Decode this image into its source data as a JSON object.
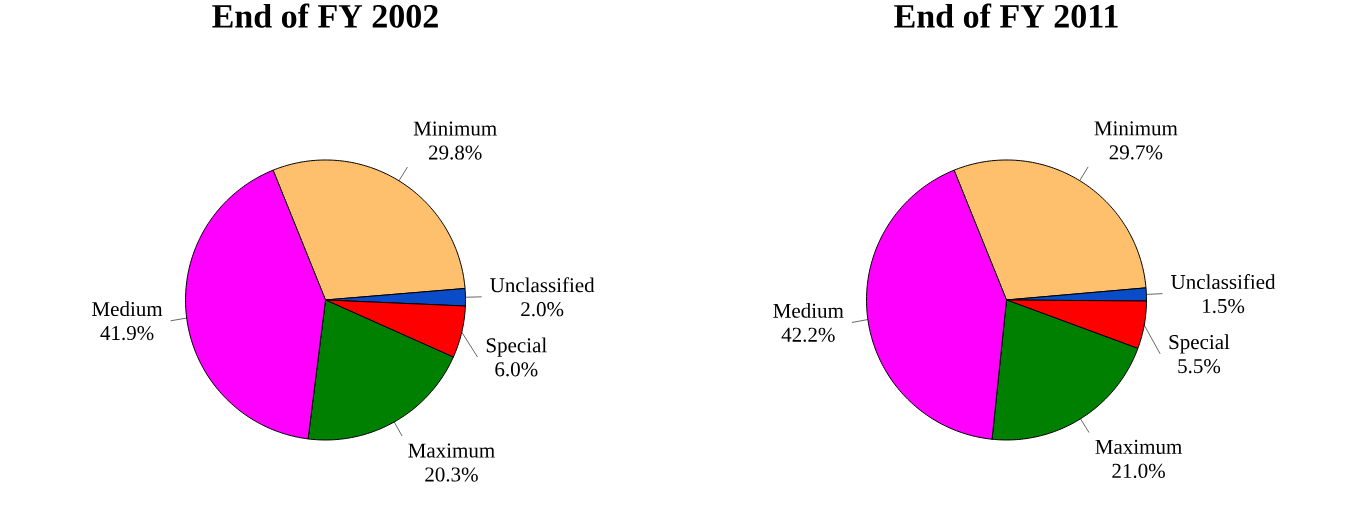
{
  "chart_data": [
    {
      "type": "pie",
      "title": "End of FY 2002",
      "categories": [
        "Minimum",
        "Unclassified",
        "Special",
        "Maximum",
        "Medium"
      ],
      "values": [
        29.8,
        2.0,
        6.0,
        20.3,
        41.9
      ],
      "value_labels": [
        "29.8%",
        "2.0%",
        "6.0%",
        "20.3%",
        "41.9%"
      ],
      "colors": [
        "#ffc06e",
        "#0a4cc8",
        "#ff0000",
        "#008000",
        "#ff00ff"
      ]
    },
    {
      "type": "pie",
      "title": "End of FY 2011",
      "categories": [
        "Minimum",
        "Unclassified",
        "Special",
        "Maximum",
        "Medium"
      ],
      "values": [
        29.7,
        1.5,
        5.5,
        21.0,
        42.2
      ],
      "value_labels": [
        "29.7%",
        "1.5%",
        "5.5%",
        "21.0%",
        "42.2%"
      ],
      "colors": [
        "#ffc06e",
        "#0a4cc8",
        "#ff0000",
        "#008000",
        "#ff00ff"
      ]
    }
  ]
}
